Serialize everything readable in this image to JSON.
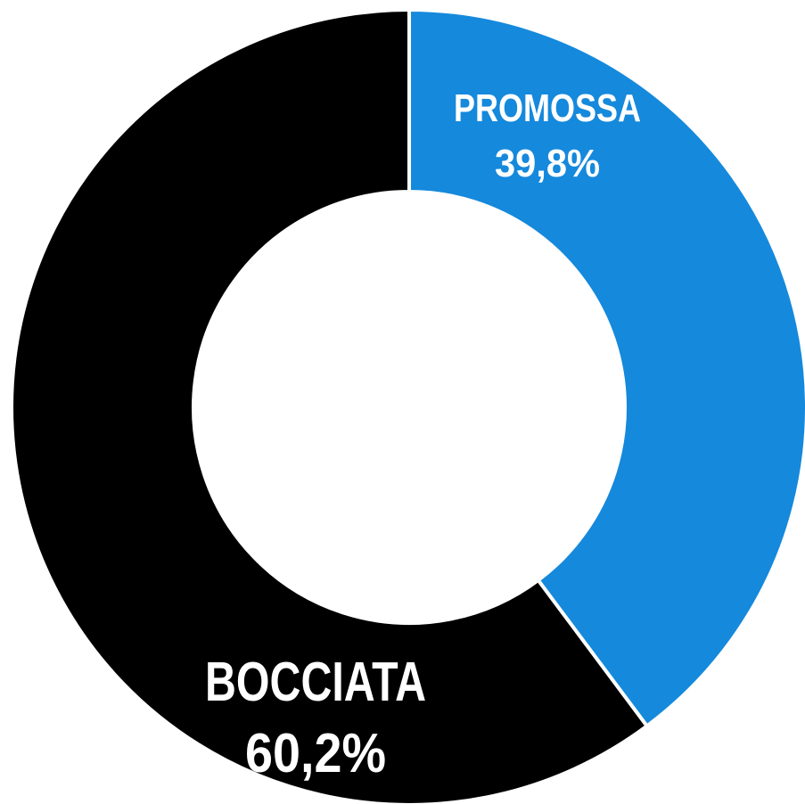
{
  "chart_data": {
    "type": "pie",
    "style": "donut",
    "title": "",
    "slices": [
      {
        "label": "PROMOSSA",
        "value_label": "39,8%",
        "value": 39.8,
        "color": "#1589dc"
      },
      {
        "label": "BOCCIATA",
        "value_label": "60,2%",
        "value": 60.2,
        "color": "#000000"
      }
    ],
    "start_angle": "top",
    "direction": "clockwise",
    "separator_color": "#ffffff",
    "legend": "none"
  }
}
